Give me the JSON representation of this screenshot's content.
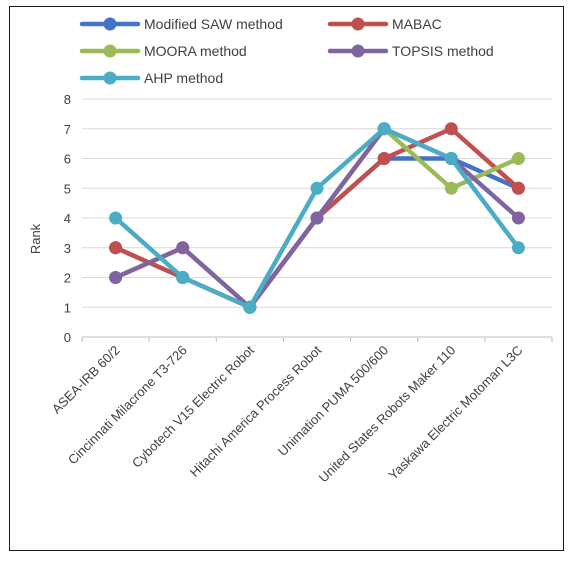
{
  "chart_data": {
    "type": "line",
    "title": "",
    "ylabel": "Rank",
    "xlabel": "",
    "ylim": [
      0,
      8
    ],
    "yticks": [
      0,
      1,
      2,
      3,
      4,
      5,
      6,
      7,
      8
    ],
    "grid": true,
    "legend_position": "top",
    "categories": [
      "ASEA-IRB 60/2",
      "Cincinnati Milacrone T3-726",
      "Cybotech V15 Electric Robot",
      "Hitachi America Process Robot",
      "Unimation PUMA 500/600",
      "United States Robots Maker 110",
      "Yaskawa Electric Motoman L3C"
    ],
    "series": [
      {
        "name": "Modified SAW  method",
        "color": "#4472C4",
        "values": [
          3,
          2,
          1,
          4,
          6,
          6,
          5
        ]
      },
      {
        "name": "MABAC",
        "color": "#C0504D",
        "values": [
          3,
          2,
          1,
          4,
          6,
          7,
          5
        ]
      },
      {
        "name": "MOORA method",
        "color": "#9BBB59",
        "values": [
          2,
          3,
          1,
          4,
          7,
          5,
          6
        ]
      },
      {
        "name": "TOPSIS method",
        "color": "#8064A2",
        "values": [
          2,
          3,
          1,
          4,
          7,
          6,
          4
        ]
      },
      {
        "name": "AHP method",
        "color": "#4BACC6",
        "values": [
          4,
          2,
          1,
          5,
          7,
          6,
          3
        ]
      }
    ]
  }
}
